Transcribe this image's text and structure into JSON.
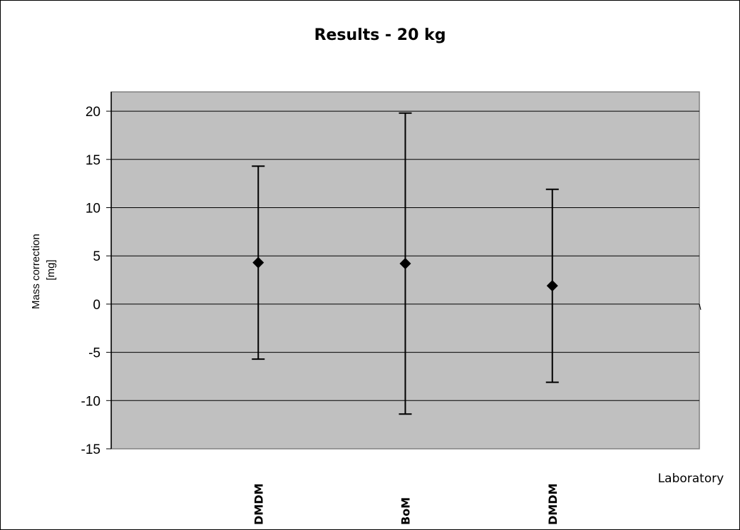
{
  "chart_data": {
    "type": "scatter",
    "title": "Results - 20 kg",
    "xlabel": "Laboratory",
    "ylabel_lines": [
      "Mass correction",
      "[mg]"
    ],
    "categories": [
      "DMDM",
      "BoM",
      "DMDM"
    ],
    "series": [
      {
        "values": [
          4.3,
          4.2,
          1.9
        ],
        "error_low": [
          -5.7,
          -11.4,
          -8.1
        ],
        "error_high": [
          14.3,
          19.8,
          11.9
        ]
      }
    ],
    "ylim": [
      -15,
      22
    ],
    "yticks": [
      20,
      15,
      10,
      5,
      0,
      -5,
      -10,
      -15
    ],
    "ytick_labels": [
      "20",
      "15",
      "10",
      "5",
      "0",
      "-5",
      "-10",
      "-15"
    ],
    "grid": true,
    "legend": "none",
    "colors": {
      "plot_bg": "#c0c0c0",
      "grid": "#000000",
      "marker": "#000000"
    }
  }
}
